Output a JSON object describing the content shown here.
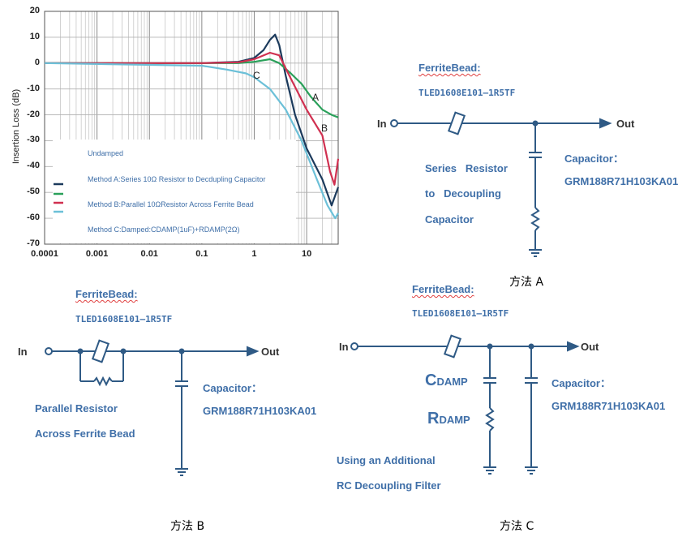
{
  "chart_data": {
    "type": "line",
    "ylabel": "Insertion Loss (dB)",
    "x_scale": "log",
    "xlim": [
      0.0001,
      40
    ],
    "ylim": [
      -70,
      20
    ],
    "x_ticks": [
      "0.0001",
      "0.001",
      "0.01",
      "0.1",
      "1",
      "10"
    ],
    "y_ticks": [
      "20",
      "10",
      "0",
      "-10",
      "-20",
      "-30",
      "-40",
      "-50",
      "-60",
      "-70"
    ],
    "grid": true,
    "legend": [
      "Undamped",
      "Method A:Series 10Ω Resistor to Decdupling Capacitor",
      "Method B:Parallel 10ΩResistor Across Ferrite Bead",
      "Method C:Damped:CDAMP(1uF)+RDAMP(2Ω)"
    ],
    "annotations": [
      "A",
      "B",
      "C"
    ],
    "series": [
      {
        "color": "#1b3a5c",
        "x": [
          0.0001,
          0.1,
          0.5,
          1,
          1.5,
          2,
          2.5,
          3,
          4,
          6,
          10,
          20,
          30,
          40
        ],
        "y": [
          0,
          0,
          0.5,
          2,
          5,
          9,
          11,
          7,
          -5,
          -20,
          -33,
          -45,
          -55,
          -48
        ]
      },
      {
        "color": "#2aa05a",
        "x": [
          0.0001,
          0.1,
          0.5,
          1,
          2,
          3,
          5,
          8,
          12,
          20,
          30,
          40
        ],
        "y": [
          0,
          0,
          0,
          0.5,
          1.5,
          0,
          -4,
          -8,
          -13,
          -18,
          -20,
          -21
        ]
      },
      {
        "color": "#d03050",
        "x": [
          0.0001,
          0.1,
          0.5,
          1,
          2,
          3,
          5,
          10,
          20,
          28,
          34,
          40
        ],
        "y": [
          0,
          0,
          0.3,
          1.5,
          4,
          3,
          -6,
          -18,
          -28,
          -42,
          -47,
          -37
        ]
      },
      {
        "color": "#6cc0d8",
        "x": [
          0.0001,
          0.1,
          0.3,
          0.7,
          1,
          2,
          4,
          8,
          15,
          25,
          35,
          40
        ],
        "y": [
          0,
          -1,
          -2.5,
          -4,
          -5.5,
          -10,
          -18,
          -30,
          -44,
          -55,
          -60,
          -58
        ]
      }
    ]
  },
  "circuitA": {
    "title": "FerriteBead:",
    "part": "TLED1608E101—1R5TF",
    "in": "In",
    "out": "Out",
    "desc": [
      "Series   Resistor",
      "to   Decoupling",
      "Capacitor"
    ],
    "cap_label": "Capacitor：",
    "cap_part": "GRM188R71H103KA01",
    "caption": "方法 A"
  },
  "circuitB": {
    "title": "FerriteBead:",
    "part": "TLED1608E101—1R5TF",
    "in": "In",
    "out": "Out",
    "desc": [
      "Parallel Resistor",
      "Across Ferrite Bead"
    ],
    "cap_label": "Capacitor：",
    "cap_part": "GRM188R71H103KA01",
    "caption": "方法 B"
  },
  "circuitC": {
    "title": "FerriteBead:",
    "part": "TLED1608E101—1R5TF",
    "in": "In",
    "out": "Out",
    "cdamp_main": "C",
    "cdamp_sub": "DAMP",
    "rdamp_main": "R",
    "rdamp_sub": "DAMP",
    "desc": [
      "Using an Additional",
      "RC Decoupling Filter"
    ],
    "cap_label": "Capacitor：",
    "cap_part": "GRM188R71H103KA01",
    "caption": "方法 C"
  },
  "colors": {
    "wire": "#2f5a85",
    "label": "#3f6fa8"
  }
}
